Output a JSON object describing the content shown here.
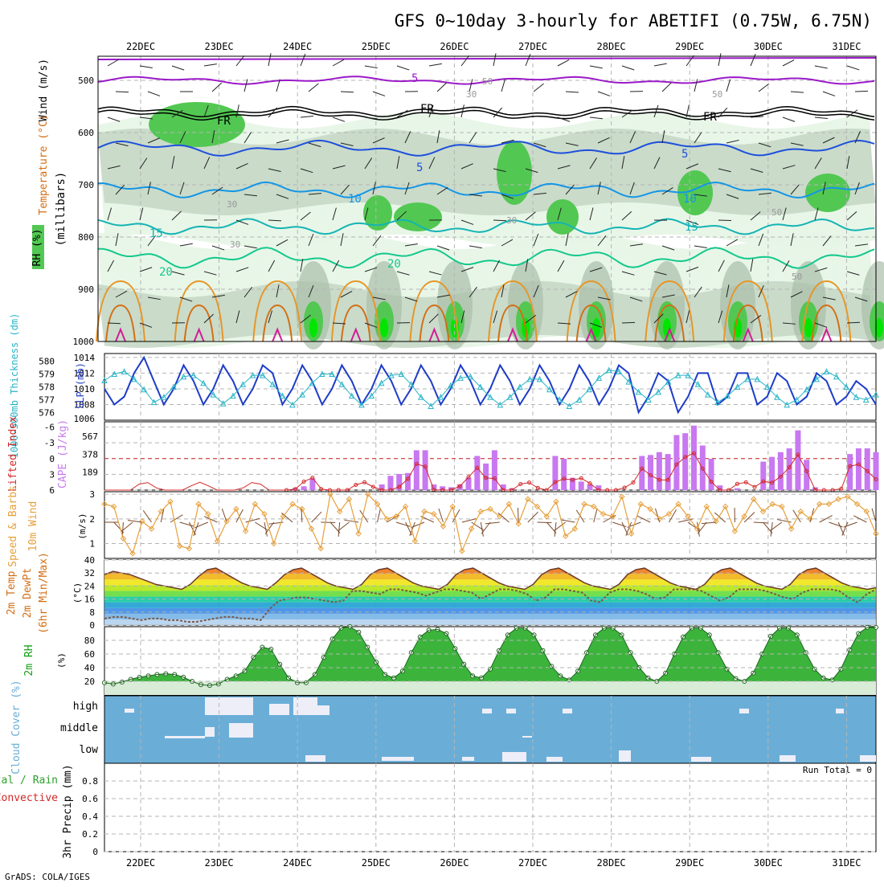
{
  "title": "GFS 0~10day 3-hourly for ABETIFI (0.75W, 6.75N)",
  "footer": "GrADS: COLA/IGES",
  "dates": [
    "22DEC",
    "23DEC",
    "24DEC",
    "25DEC",
    "26DEC",
    "27DEC",
    "28DEC",
    "29DEC",
    "30DEC",
    "31DEC"
  ],
  "colors": {
    "rh_light": "#e6f5e6",
    "rh_mid": "#c6d8c6",
    "rh_gray": "#a9bfa9",
    "rh_green": "#52c852",
    "rh_bright": "#00e600",
    "temp_purple": "#9b19c8",
    "temp_blue": "#1e50dc",
    "temp_lblue": "#1496e6",
    "temp_teal": "#14b4b4",
    "temp_green": "#14c88c",
    "warm_orange": "#e69628",
    "warm_dorange": "#d26e14",
    "warm_magenta": "#d21e96",
    "slp": "#1e3cc8",
    "thickness": "#28b4c8",
    "lifted": "#d22828",
    "cape": "#c878f0",
    "wind": "#e6a03c",
    "barb": "#7a4a2a",
    "rh2m": "#14a014",
    "cloud": "#6aaed8",
    "cloud_block": "#eeeef8"
  },
  "upper": {
    "ylabel": "(millibars)",
    "legend_wind": "Wind (m/s)",
    "legend_temp": "Temperature (°C)",
    "legend_rh": "RH (%)",
    "levels": [
      "500",
      "600",
      "700",
      "800",
      "900",
      "1000"
    ],
    "contour_labels": [
      "5",
      "FR",
      "FR",
      "FR",
      "5",
      "5",
      "10",
      "10",
      "15",
      "15",
      "20",
      "20",
      "30",
      "30",
      "30",
      "30",
      "50",
      "50",
      "50",
      "50"
    ]
  },
  "chart_data": [
    {
      "id": "upper_air",
      "type": "heatmap",
      "xlabel": "",
      "ylabel": "(millibars)",
      "ylim": [
        1000,
        450
      ],
      "yticks": [
        500,
        600,
        700,
        800,
        900,
        1000
      ],
      "isotherms_C": [
        -5,
        0,
        5,
        10,
        15,
        20
      ],
      "freezing_level_label": "FR",
      "rh_contours_pct": [
        30,
        50
      ],
      "freezing_level_hPa": 560,
      "isotherm_levels_hPa": {
        "-5": 500,
        "5": 630,
        "10": 710,
        "15": 780,
        "20": 840
      }
    },
    {
      "id": "slp_thickness",
      "type": "line",
      "ylabel_left": "1000-500mb Thickness (dm)",
      "ylabel_right": "SLP (mb)",
      "yticks_left": [
        576,
        577,
        578,
        579,
        580
      ],
      "yticks_right": [
        1008,
        1010,
        1012,
        1014
      ],
      "right_extra_tick": "1006",
      "slp_mb": [
        1010,
        1008,
        1009,
        1012,
        1014,
        1011,
        1008,
        1010,
        1013,
        1011,
        1008,
        1010,
        1013,
        1011,
        1008,
        1010,
        1013,
        1012,
        1008,
        1010,
        1013,
        1011,
        1008,
        1010,
        1013,
        1011,
        1008,
        1010,
        1013,
        1011,
        1008,
        1010,
        1013,
        1011,
        1008,
        1010,
        1013,
        1011,
        1008,
        1010,
        1013,
        1011,
        1008,
        1010,
        1013,
        1011,
        1008,
        1010,
        1013,
        1011,
        1008,
        1010,
        1013,
        1012,
        1007,
        1009,
        1012,
        1011,
        1007,
        1009,
        1012,
        1012,
        1008,
        1009,
        1012,
        1012,
        1008,
        1009,
        1012,
        1011,
        1008,
        1009,
        1012,
        1011,
        1008,
        1009,
        1011,
        1010,
        1008
      ],
      "thickness_dm": [
        578.5,
        579,
        579.2,
        578.6,
        577.8,
        576.8,
        577.2,
        578.0,
        578.8,
        578.9,
        578.3,
        577.4,
        576.7,
        577.3,
        578.2,
        578.9,
        578.9,
        578.2,
        577.3,
        576.6,
        577.4,
        578.3,
        579.0,
        579.0,
        578.2,
        577.3,
        576.6,
        577.3,
        578.3,
        578.9,
        579.0,
        578.2,
        577.2,
        576.5,
        577.2,
        578.1,
        578.7,
        578.8,
        578.0,
        577.2,
        576.6,
        577.2,
        578.0,
        578.6,
        578.6,
        577.8,
        577.0,
        576.5,
        577.0,
        577.8,
        578.7,
        579.3,
        579.2,
        578.4,
        577.6,
        577.0,
        577.6,
        578.4,
        578.9,
        578.9,
        578.2,
        577.4,
        576.8,
        577.3,
        578.0,
        578.6,
        578.6,
        578.0,
        577.2,
        576.6,
        577.0,
        577.8,
        578.6,
        579.2,
        578.8,
        578.0,
        577.2,
        577.0,
        577.4
      ]
    },
    {
      "id": "lifted_cape",
      "type": "bar",
      "ylabel_left": "Lifted Index",
      "ylabel_right": "CAPE (J/kg)",
      "yticks_left": [
        -6,
        -3,
        0,
        3,
        6
      ],
      "yticks_right": [
        189,
        378,
        567
      ],
      "cape_jkg": [
        0,
        0,
        0,
        0,
        0,
        0,
        0,
        0,
        0,
        0,
        0,
        0,
        0,
        0,
        0,
        0,
        0,
        0,
        0,
        0,
        0,
        0,
        20,
        40,
        120,
        0,
        0,
        0,
        0,
        0,
        0,
        0,
        60,
        150,
        170,
        180,
        420,
        420,
        60,
        40,
        30,
        60,
        130,
        360,
        280,
        420,
        60,
        20,
        0,
        0,
        0,
        0,
        360,
        330,
        130,
        90,
        60,
        50,
        0,
        0,
        0,
        0,
        360,
        370,
        400,
        380,
        580,
        600,
        680,
        470,
        330,
        50,
        0,
        20,
        0,
        0,
        300,
        350,
        400,
        440,
        630,
        320,
        30,
        0,
        0,
        0,
        380,
        440,
        440,
        400
      ]
    },
    {
      "id": "wind10m",
      "type": "line",
      "ylabel": "10m Wind Speed & Barbs (m/s)",
      "yticks": [
        1,
        2,
        3
      ],
      "ylim": [
        0.4,
        3.1
      ],
      "speed_ms": [
        2.6,
        2.5,
        1.2,
        0.6,
        1.9,
        1.6,
        2.3,
        2.7,
        0.9,
        0.8,
        2.6,
        2.2,
        1.1,
        1.9,
        2.4,
        1.5,
        2.6,
        2.2,
        1.0,
        2.1,
        2.6,
        2.4,
        1.6,
        0.8,
        3.0,
        2.3,
        2.8,
        1.4,
        3.0,
        2.6,
        2.0,
        2.1,
        2.5,
        1.1,
        2.3,
        2.2,
        1.7,
        2.5,
        0.7,
        1.6,
        2.3,
        2.4,
        2.1,
        2.6,
        1.8,
        2.8,
        2.5,
        2.1,
        2.7,
        1.3,
        1.6,
        2.6,
        2.5,
        2.2,
        2.1,
        2.9,
        1.4,
        2.6,
        2.4,
        2.0,
        2.2,
        2.6,
        2.1,
        1.6,
        2.5,
        1.9,
        2.5,
        1.5,
        2.1,
        2.8,
        2.3,
        2.6,
        2.5,
        1.6,
        2.3,
        2.0,
        2.6,
        2.6,
        2.8,
        2.9,
        2.6,
        2.3,
        1.4
      ]
    },
    {
      "id": "temp2m",
      "type": "area",
      "ylabel": "2m Temp / 2m DewPt (6hr Min/Max) (°C)",
      "yticks": [
        0,
        8,
        16,
        24,
        32,
        40
      ],
      "ylim": [
        0,
        40
      ],
      "temp_C": [
        31,
        33,
        32,
        31,
        29,
        27,
        25,
        24,
        23,
        22,
        25,
        30,
        34,
        35,
        32,
        29,
        26,
        24,
        23,
        22,
        26,
        31,
        34,
        35,
        32,
        29,
        26,
        24,
        23,
        22,
        25,
        31,
        34,
        35,
        32,
        29,
        26,
        24,
        23,
        22,
        25,
        31,
        34,
        35,
        32,
        29,
        26,
        24,
        23,
        22,
        25,
        31,
        34,
        35,
        32,
        29,
        26,
        24,
        23,
        22,
        25,
        31,
        34,
        35,
        32,
        29,
        26,
        24,
        23,
        22,
        25,
        31,
        34,
        35,
        32,
        29,
        26,
        24,
        23,
        22,
        25,
        31,
        34,
        35,
        32,
        29,
        26,
        24,
        23,
        22,
        23
      ],
      "dewpt_C": [
        4,
        5,
        5,
        4,
        3,
        4,
        4,
        3,
        3,
        2,
        2,
        3,
        4,
        5,
        5,
        4,
        4,
        3,
        10,
        15,
        16,
        17,
        17,
        16,
        15,
        14,
        15,
        21,
        21,
        20,
        19,
        22,
        22,
        21,
        20,
        18,
        20,
        22,
        22,
        21,
        20,
        16,
        19,
        22,
        22,
        21,
        19,
        15,
        17,
        22,
        22,
        21,
        20,
        15,
        14,
        20,
        22,
        22,
        21,
        19,
        16,
        17,
        22,
        22,
        22,
        21,
        18,
        15,
        17,
        22,
        22,
        22,
        21,
        19,
        17,
        16,
        20,
        22,
        22,
        22,
        21,
        17,
        14,
        19,
        22
      ]
    },
    {
      "id": "rh2m",
      "type": "area",
      "ylabel": "2m RH (%)",
      "yticks": [
        20,
        40,
        60,
        80
      ],
      "ylim": [
        0,
        100
      ],
      "rh_pct": [
        18,
        16,
        19,
        23,
        26,
        28,
        30,
        31,
        30,
        26,
        20,
        15,
        14,
        16,
        23,
        28,
        35,
        55,
        70,
        67,
        45,
        25,
        18,
        18,
        30,
        55,
        82,
        98,
        100,
        92,
        70,
        48,
        30,
        25,
        35,
        62,
        85,
        95,
        96,
        90,
        68,
        45,
        28,
        25,
        38,
        65,
        88,
        98,
        98,
        88,
        65,
        42,
        28,
        22,
        35,
        62,
        88,
        98,
        98,
        88,
        62,
        40,
        25,
        20,
        32,
        60,
        85,
        98,
        98,
        88,
        62,
        38,
        24,
        20,
        32,
        60,
        86,
        98,
        98,
        88,
        62,
        38,
        25,
        22,
        38,
        66,
        90,
        99,
        99
      ]
    },
    {
      "id": "cloud",
      "type": "bar",
      "ylabel": "Cloud Cover (%)",
      "categories": [
        "high",
        "middle",
        "low"
      ]
    },
    {
      "id": "precip",
      "type": "bar",
      "ylabel": "3hr Precip (mm)",
      "legend_total": "Total / Rain",
      "legend_conv": "Convective",
      "run_total_label": "Run Total = 0",
      "yticks": [
        0,
        0.2,
        0.4,
        0.6,
        0.8
      ],
      "ylim": [
        0,
        1.0
      ],
      "precip_mm": []
    }
  ]
}
